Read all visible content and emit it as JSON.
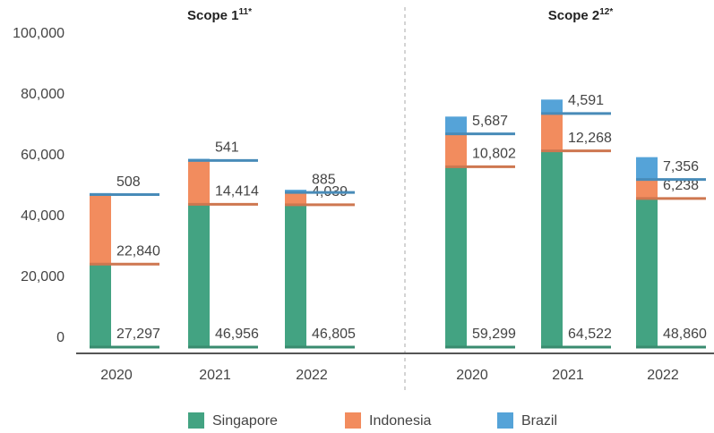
{
  "chart_data": [
    {
      "type": "bar",
      "stacked": true,
      "title": "Scope 1",
      "title_note": "11*",
      "categories": [
        "2020",
        "2021",
        "2022"
      ],
      "series": [
        {
          "name": "Singapore",
          "color": "#43a382",
          "values": [
            27297,
            46956,
            46805
          ],
          "value_labels": [
            "27,297",
            "46,956",
            "46,805"
          ]
        },
        {
          "name": "Indonesia",
          "color": "#f28c5e",
          "values": [
            22840,
            14414,
            4039
          ],
          "value_labels": [
            "22,840",
            "14,414",
            "4,039"
          ]
        },
        {
          "name": "Brazil",
          "color": "#55a3d8",
          "values": [
            508,
            541,
            885
          ],
          "value_labels": [
            "508",
            "541",
            "885"
          ]
        }
      ],
      "ylim": [
        0,
        100000
      ],
      "yticks": [
        0,
        {
          "value": 20000,
          "label": "20,000"
        },
        {
          "value": 40000,
          "label": "40,000"
        },
        {
          "value": 60000,
          "label": "60,000"
        },
        {
          "value": 80000,
          "label": "80,000"
        },
        {
          "value": 100000,
          "label": "100,000"
        }
      ]
    },
    {
      "type": "bar",
      "stacked": true,
      "title": "Scope 2",
      "title_note": "12*",
      "categories": [
        "2020",
        "2021",
        "2022"
      ],
      "series": [
        {
          "name": "Singapore",
          "color": "#43a382",
          "values": [
            59299,
            64522,
            48860
          ],
          "value_labels": [
            "59,299",
            "64,522",
            "48,860"
          ]
        },
        {
          "name": "Indonesia",
          "color": "#f28c5e",
          "values": [
            10802,
            12268,
            6238
          ],
          "value_labels": [
            "10,802",
            "12,268",
            "6,238"
          ]
        },
        {
          "name": "Brazil",
          "color": "#55a3d8",
          "values": [
            5687,
            4591,
            7356
          ],
          "value_labels": [
            "5,687",
            "4,591",
            "7,356"
          ]
        }
      ],
      "ylim": [
        0,
        100000
      ]
    }
  ]
}
